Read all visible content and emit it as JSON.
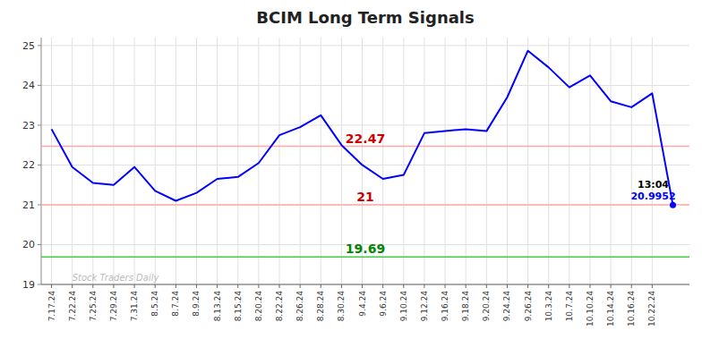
{
  "chart_data": {
    "type": "line",
    "title": "BCIM Long Term Signals",
    "categories": [
      "7.17.24",
      "7.22.24",
      "7.25.24",
      "7.29.24",
      "7.31.24",
      "8.5.24",
      "8.7.24",
      "8.9.24",
      "8.13.24",
      "8.15.24",
      "8.20.24",
      "8.22.24",
      "8.26.24",
      "8.28.24",
      "8.30.24",
      "9.4.24",
      "9.6.24",
      "9.10.24",
      "9.12.24",
      "9.16.24",
      "9.18.24",
      "9.20.24",
      "9.24.24",
      "9.26.24",
      "10.3.24",
      "10.7.24",
      "10.10.24",
      "10.14.24",
      "10.16.24",
      "10.22.24",
      null
    ],
    "values": [
      22.9,
      21.95,
      21.55,
      21.5,
      21.95,
      21.35,
      21.1,
      21.3,
      21.65,
      21.7,
      22.05,
      22.75,
      22.95,
      23.25,
      22.5,
      22.0,
      21.65,
      21.75,
      22.8,
      22.85,
      22.9,
      22.85,
      23.7,
      24.87,
      24.45,
      23.95,
      24.25,
      23.6,
      23.45,
      23.8,
      20.9952
    ],
    "color": "#0000ff",
    "ylim": [
      19.0,
      25.2
    ],
    "yticks": [
      19,
      20,
      21,
      22,
      23,
      24,
      25
    ],
    "grid": true,
    "hlines": [
      {
        "value": 22.47,
        "label": "22.47",
        "color": "#ffaaaa",
        "label_color": "#cc0000"
      },
      {
        "value": 21.0,
        "label": "21",
        "color": "#ffaaaa",
        "label_color": "#cc0000"
      },
      {
        "value": 19.69,
        "label": "19.69",
        "color": "#44cc44",
        "label_color": "#008800"
      }
    ],
    "last_time_label": "13:04",
    "last_value_label": "20.9952",
    "watermark": "Stock Traders Daily"
  }
}
